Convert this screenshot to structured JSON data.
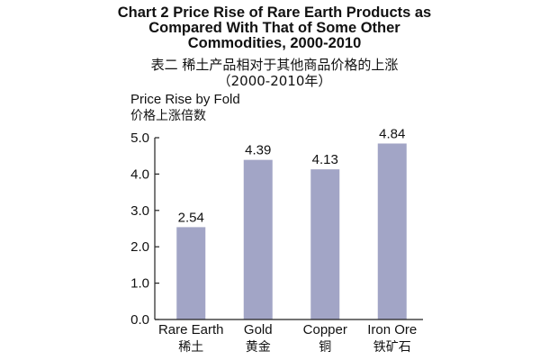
{
  "chart_data": {
    "type": "bar",
    "title": "Chart 2 Price Rise of Rare Earth Products as Compared With That of Some Other Commodities, 2000-2010",
    "subtitle_zh": "表二 稀土产品相对于其他商品价格的上涨",
    "subtitle_years": "（2000-2010年）",
    "ylabel": "Price Rise by Fold",
    "ylabel_zh": "价格上涨倍数",
    "categories": [
      "Rare Earth",
      "Gold",
      "Copper",
      "Iron Ore"
    ],
    "categories_zh": [
      "稀土",
      "黄金",
      "铜",
      "铁矿石"
    ],
    "values": [
      2.54,
      4.39,
      4.13,
      4.84
    ],
    "value_labels": [
      "2.54",
      "4.39",
      "4.13",
      "4.84"
    ],
    "yticks": [
      "0.0",
      "1.0",
      "2.0",
      "3.0",
      "4.0",
      "5.0"
    ],
    "ylim": [
      0,
      5
    ],
    "grid": false,
    "bar_color": "#a2a5c6"
  }
}
